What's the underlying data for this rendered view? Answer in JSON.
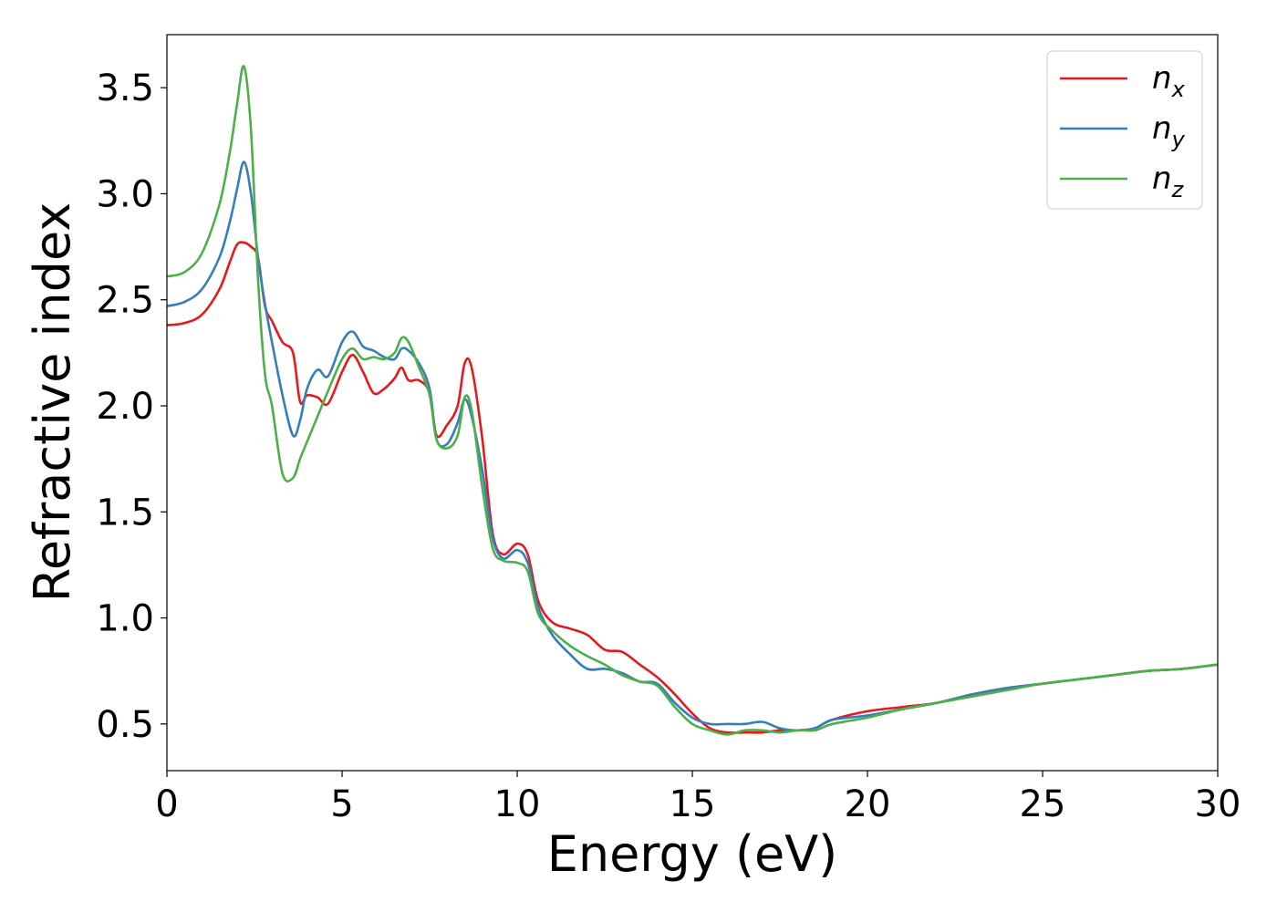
{
  "chart_data": {
    "type": "line",
    "xlabel": "Energy (eV)",
    "ylabel": "Refractive index",
    "xlim": [
      0,
      30
    ],
    "ylim": [
      0.28,
      3.75
    ],
    "xticks": [
      0,
      5,
      10,
      15,
      20,
      25,
      30
    ],
    "xtick_labels": [
      "0",
      "5",
      "10",
      "15",
      "20",
      "25",
      "30"
    ],
    "yticks": [
      0.5,
      1.0,
      1.5,
      2.0,
      2.5,
      3.0,
      3.5
    ],
    "ytick_labels": [
      "0.5",
      "1.0",
      "1.5",
      "2.0",
      "2.5",
      "3.0",
      "3.5"
    ],
    "grid": false,
    "legend_position": "top-right",
    "series": [
      {
        "name": "n",
        "subscript": "x",
        "color": "#e41a1c",
        "x": [
          0,
          0.5,
          1.0,
          1.5,
          1.8,
          2.0,
          2.2,
          2.4,
          2.6,
          2.8,
          3.0,
          3.3,
          3.6,
          3.8,
          4.0,
          4.3,
          4.6,
          5.0,
          5.3,
          5.6,
          5.9,
          6.2,
          6.5,
          6.7,
          6.9,
          7.2,
          7.5,
          7.7,
          8.0,
          8.3,
          8.5,
          8.7,
          9.0,
          9.3,
          9.6,
          10.0,
          10.3,
          10.6,
          11.0,
          11.5,
          12.0,
          12.5,
          13.0,
          13.5,
          14.0,
          14.5,
          15.0,
          15.5,
          16.0,
          16.5,
          17.0,
          17.5,
          18.0,
          18.5,
          19.0,
          20.0,
          21.0,
          22.0,
          23.0,
          24.0,
          25.0,
          26.0,
          27.0,
          28.0,
          29.0,
          30.0
        ],
        "y": [
          2.38,
          2.39,
          2.43,
          2.55,
          2.68,
          2.76,
          2.77,
          2.75,
          2.7,
          2.47,
          2.4,
          2.3,
          2.25,
          2.02,
          2.05,
          2.04,
          2.01,
          2.16,
          2.24,
          2.16,
          2.06,
          2.08,
          2.13,
          2.18,
          2.12,
          2.12,
          2.06,
          1.86,
          1.91,
          2.0,
          2.2,
          2.18,
          1.85,
          1.4,
          1.3,
          1.35,
          1.3,
          1.08,
          0.98,
          0.95,
          0.92,
          0.85,
          0.84,
          0.78,
          0.72,
          0.64,
          0.55,
          0.48,
          0.46,
          0.46,
          0.46,
          0.47,
          0.47,
          0.48,
          0.52,
          0.56,
          0.58,
          0.6,
          0.64,
          0.67,
          0.69,
          0.71,
          0.73,
          0.75,
          0.76,
          0.78
        ]
      },
      {
        "name": "n",
        "subscript": "y",
        "color": "#377eb8",
        "x": [
          0,
          0.5,
          1.0,
          1.5,
          1.8,
          2.0,
          2.2,
          2.4,
          2.6,
          2.8,
          3.0,
          3.3,
          3.6,
          3.8,
          4.0,
          4.3,
          4.6,
          5.0,
          5.3,
          5.6,
          5.9,
          6.2,
          6.5,
          6.7,
          6.9,
          7.2,
          7.5,
          7.7,
          8.0,
          8.3,
          8.5,
          8.7,
          9.0,
          9.3,
          9.6,
          10.0,
          10.3,
          10.6,
          11.0,
          11.5,
          12.0,
          12.5,
          13.0,
          13.5,
          14.0,
          14.5,
          15.0,
          15.5,
          16.0,
          16.5,
          17.0,
          17.5,
          18.0,
          18.5,
          19.0,
          20.0,
          21.0,
          22.0,
          23.0,
          24.0,
          25.0,
          26.0,
          27.0,
          28.0,
          29.0,
          30.0
        ],
        "y": [
          2.47,
          2.49,
          2.55,
          2.7,
          2.87,
          3.02,
          3.15,
          3.0,
          2.7,
          2.48,
          2.3,
          2.05,
          1.86,
          1.93,
          2.08,
          2.17,
          2.14,
          2.3,
          2.35,
          2.28,
          2.26,
          2.23,
          2.22,
          2.27,
          2.26,
          2.2,
          2.08,
          1.84,
          1.82,
          1.92,
          2.03,
          1.95,
          1.7,
          1.38,
          1.28,
          1.32,
          1.26,
          1.05,
          0.92,
          0.83,
          0.76,
          0.76,
          0.74,
          0.7,
          0.69,
          0.6,
          0.53,
          0.5,
          0.5,
          0.5,
          0.51,
          0.48,
          0.47,
          0.48,
          0.52,
          0.54,
          0.57,
          0.6,
          0.64,
          0.67,
          0.69,
          0.71,
          0.73,
          0.75,
          0.76,
          0.78
        ]
      },
      {
        "name": "n",
        "subscript": "z",
        "color": "#4daf4a",
        "x": [
          0,
          0.5,
          1.0,
          1.5,
          1.8,
          2.0,
          2.2,
          2.4,
          2.6,
          2.8,
          3.0,
          3.3,
          3.6,
          3.8,
          4.0,
          4.3,
          4.6,
          5.0,
          5.3,
          5.6,
          5.9,
          6.2,
          6.5,
          6.7,
          6.9,
          7.2,
          7.5,
          7.7,
          8.0,
          8.3,
          8.5,
          8.7,
          9.0,
          9.3,
          9.6,
          10.0,
          10.3,
          10.6,
          11.0,
          11.5,
          12.0,
          12.5,
          13.0,
          13.5,
          14.0,
          14.5,
          15.0,
          15.5,
          16.0,
          16.5,
          17.0,
          17.5,
          18.0,
          18.5,
          19.0,
          20.0,
          21.0,
          22.0,
          23.0,
          24.0,
          25.0,
          26.0,
          27.0,
          28.0,
          29.0,
          30.0
        ],
        "y": [
          2.61,
          2.63,
          2.72,
          2.95,
          3.2,
          3.42,
          3.6,
          3.3,
          2.6,
          2.15,
          2.0,
          1.68,
          1.66,
          1.75,
          1.83,
          1.95,
          2.07,
          2.22,
          2.27,
          2.22,
          2.23,
          2.22,
          2.25,
          2.32,
          2.3,
          2.18,
          2.05,
          1.84,
          1.8,
          1.86,
          2.04,
          1.98,
          1.62,
          1.33,
          1.27,
          1.26,
          1.22,
          1.02,
          0.94,
          0.87,
          0.82,
          0.78,
          0.73,
          0.7,
          0.68,
          0.58,
          0.5,
          0.47,
          0.45,
          0.47,
          0.47,
          0.46,
          0.47,
          0.47,
          0.5,
          0.53,
          0.57,
          0.6,
          0.63,
          0.66,
          0.69,
          0.71,
          0.73,
          0.75,
          0.76,
          0.78
        ]
      }
    ]
  }
}
